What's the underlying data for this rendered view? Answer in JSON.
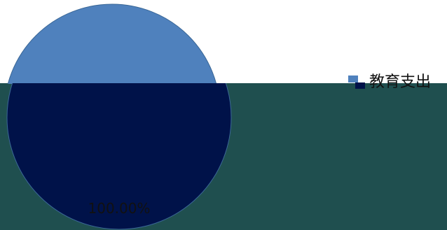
{
  "chart_data": {
    "type": "pie",
    "title": "",
    "legend_position": "right",
    "series": [
      {
        "name": "教育支出",
        "values": [
          100.0
        ]
      }
    ],
    "slices": [
      {
        "label": "教育支出",
        "value": 100.0,
        "percent_label": "100.00%",
        "color": "#4f81bd"
      }
    ]
  },
  "colors": {
    "background_top": "#ffffff",
    "background_band": "#1f4f4f",
    "pie_fill": "#4f81bd",
    "pie_fill_overlap": "#001249",
    "pie_edge": "#3a6796",
    "legend_swatch_a": "#4f81bd",
    "legend_swatch_b": "#001249"
  }
}
